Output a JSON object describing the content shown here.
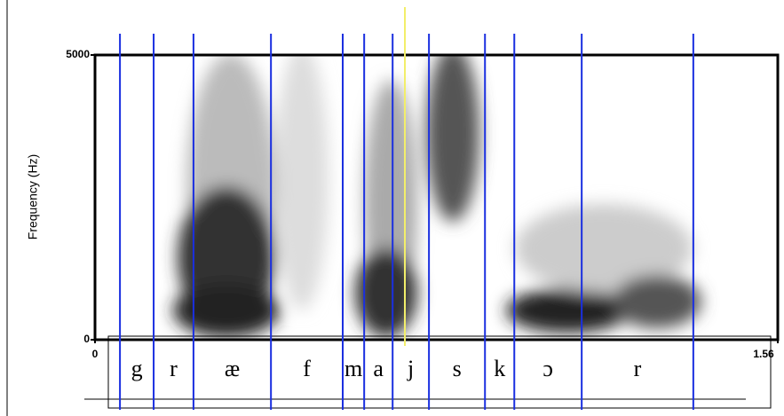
{
  "chart_data": {
    "type": "spectrogram",
    "y_label": "Frequency (Hz)",
    "xlim": [
      0,
      1.56
    ],
    "xticks": [
      0,
      1.56
    ],
    "ylim": [
      0,
      5000
    ],
    "yticks": [
      0,
      5000
    ],
    "boundaries": [
      0.057,
      0.134,
      0.225,
      0.402,
      0.566,
      0.615,
      0.68,
      0.763,
      0.891,
      0.958,
      1.112,
      1.367
    ],
    "segments": [
      "g",
      "r",
      "æ",
      "f",
      "m",
      "a",
      "j",
      "s",
      "k",
      "ɔ",
      "r"
    ],
    "boundary_color": "#1a2fe0",
    "cursor": 0.708,
    "cursor_color": "#f2ee6a"
  }
}
